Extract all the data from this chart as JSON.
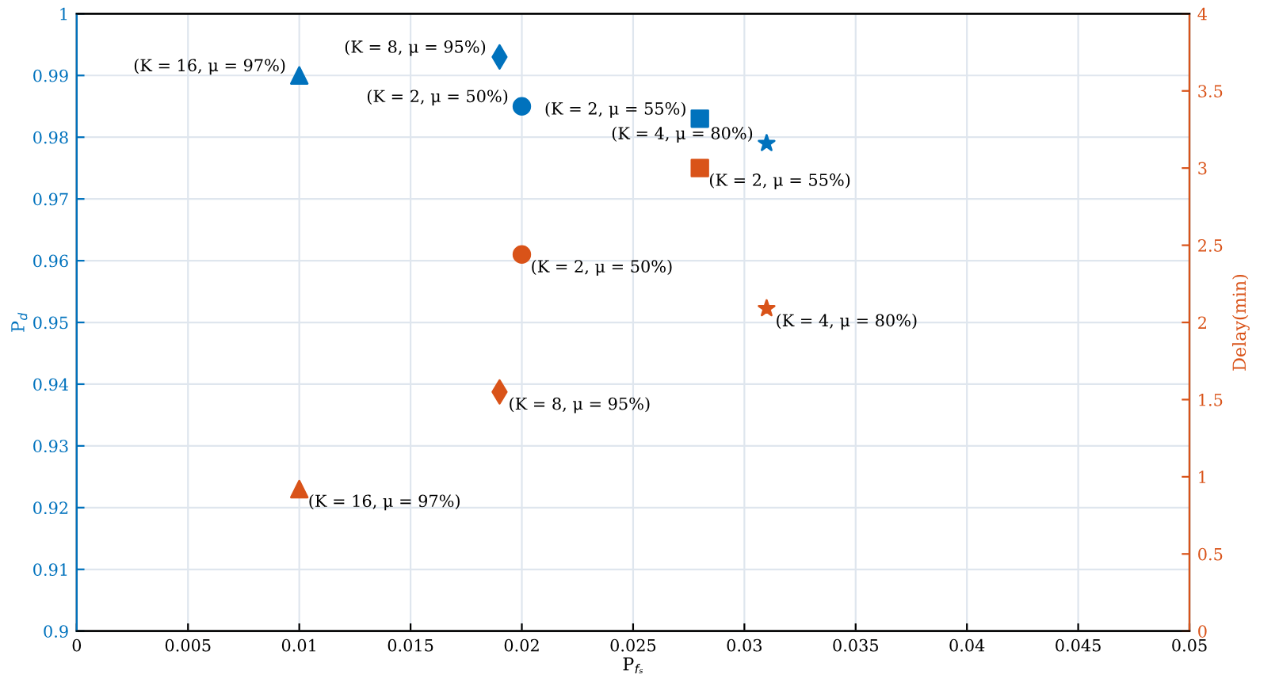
{
  "chart_data": {
    "type": "scatter",
    "xlabel": "P$_{fₛ}$",
    "ylabel": "P$_{d}$",
    "y2label": "Delay(min)",
    "xlim": [
      0,
      0.05
    ],
    "xticks": [
      0,
      0.005,
      0.01,
      0.015,
      0.02,
      0.025,
      0.03,
      0.035,
      0.04,
      0.045,
      0.05
    ],
    "ylim": [
      0.9,
      1
    ],
    "yticks": [
      0.9,
      0.91,
      0.92,
      0.93,
      0.94,
      0.95,
      0.96,
      0.97,
      0.98,
      0.99,
      1
    ],
    "y2lim": [
      0,
      4
    ],
    "y2ticks": [
      0,
      0.5,
      1,
      1.5,
      2,
      2.5,
      3,
      3.5,
      4
    ],
    "grid": true,
    "series": [
      {
        "x": [
          0.01
        ],
        "values": [
          0.99
        ],
        "color": "#0072bd",
        "marker": "triangle",
        "value_labels": [
          "(K = 16, μ = 97%)"
        ]
      },
      {
        "x": [
          0.019
        ],
        "values": [
          0.993
        ],
        "color": "#0072bd",
        "marker": "diamond",
        "value_labels": [
          "(K = 8, μ = 95%)"
        ]
      },
      {
        "x": [
          0.02
        ],
        "values": [
          0.985
        ],
        "color": "#0072bd",
        "marker": "circle",
        "value_labels": [
          "(K = 2, μ = 50%)"
        ]
      },
      {
        "x": [
          0.028
        ],
        "values": [
          0.983
        ],
        "color": "#0072bd",
        "marker": "square",
        "value_labels": [
          "(K = 2, μ = 55%)"
        ]
      },
      {
        "x": [
          0.031
        ],
        "values": [
          0.979
        ],
        "color": "#0072bd",
        "marker": "star",
        "value_labels": [
          "(K = 4, μ = 80%)"
        ]
      },
      {
        "x": [
          0.01
        ],
        "values": [
          0.92
        ],
        "color": "#d95319",
        "marker": "triangle",
        "axis": "y2",
        "value_labels": [
          "(K = 16, μ = 97%)"
        ]
      },
      {
        "x": [
          0.019
        ],
        "values": [
          1.55
        ],
        "color": "#d95319",
        "marker": "diamond",
        "axis": "y2",
        "value_labels": [
          "(K = 8, μ = 95%)"
        ]
      },
      {
        "x": [
          0.02
        ],
        "values": [
          2.44
        ],
        "color": "#d95319",
        "marker": "circle",
        "axis": "y2",
        "value_labels": [
          "(K = 2, μ = 50%)"
        ]
      },
      {
        "x": [
          0.028
        ],
        "values": [
          3.0
        ],
        "color": "#d95319",
        "marker": "square",
        "axis": "y2",
        "value_labels": [
          "(K = 2, μ = 55%)"
        ]
      },
      {
        "x": [
          0.031
        ],
        "values": [
          2.09
        ],
        "color": "#d95319",
        "marker": "star",
        "axis": "y2",
        "value_labels": [
          "(K = 4, μ = 80%)"
        ]
      }
    ]
  }
}
